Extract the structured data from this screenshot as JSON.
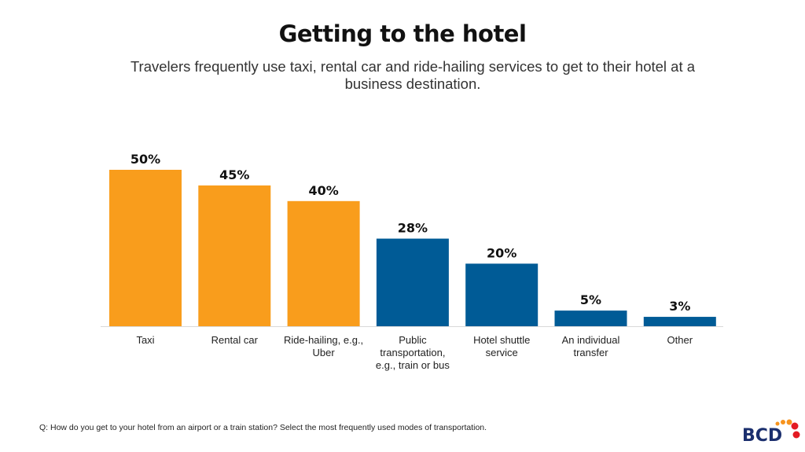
{
  "title": "Getting to the hotel",
  "subtitle": "Travelers frequently use taxi, rental car and ride-hailing services to get to their hotel at a business destination.",
  "footnote": "Q: How do you get to your hotel from an airport or a train station? Select the most frequently used modes of transportation.",
  "logo": {
    "text": "BCD",
    "colors": {
      "text": "#1b2f6e",
      "dots_orange": "#f7941d",
      "dots_red": "#e31b23"
    }
  },
  "chart_data": {
    "type": "bar",
    "title": "Getting to the hotel",
    "categories": [
      [
        "Taxi"
      ],
      [
        "Rental car"
      ],
      [
        "Ride-hailing, e.g.,",
        "Uber"
      ],
      [
        "Public",
        "transportation,",
        "e.g., train or bus"
      ],
      [
        "Hotel shuttle",
        "service"
      ],
      [
        "An individual",
        "transfer"
      ],
      [
        "Other"
      ]
    ],
    "values": [
      50,
      45,
      40,
      28,
      20,
      5,
      3
    ],
    "labels": [
      "50%",
      "45%",
      "40%",
      "28%",
      "20%",
      "5%",
      "3%"
    ],
    "colors": [
      "#f99d1c",
      "#f99d1c",
      "#f99d1c",
      "#005b96",
      "#005b96",
      "#005b96",
      "#005b96"
    ],
    "ylim": [
      0,
      50
    ],
    "grid": false,
    "yaxis_visible": false
  }
}
